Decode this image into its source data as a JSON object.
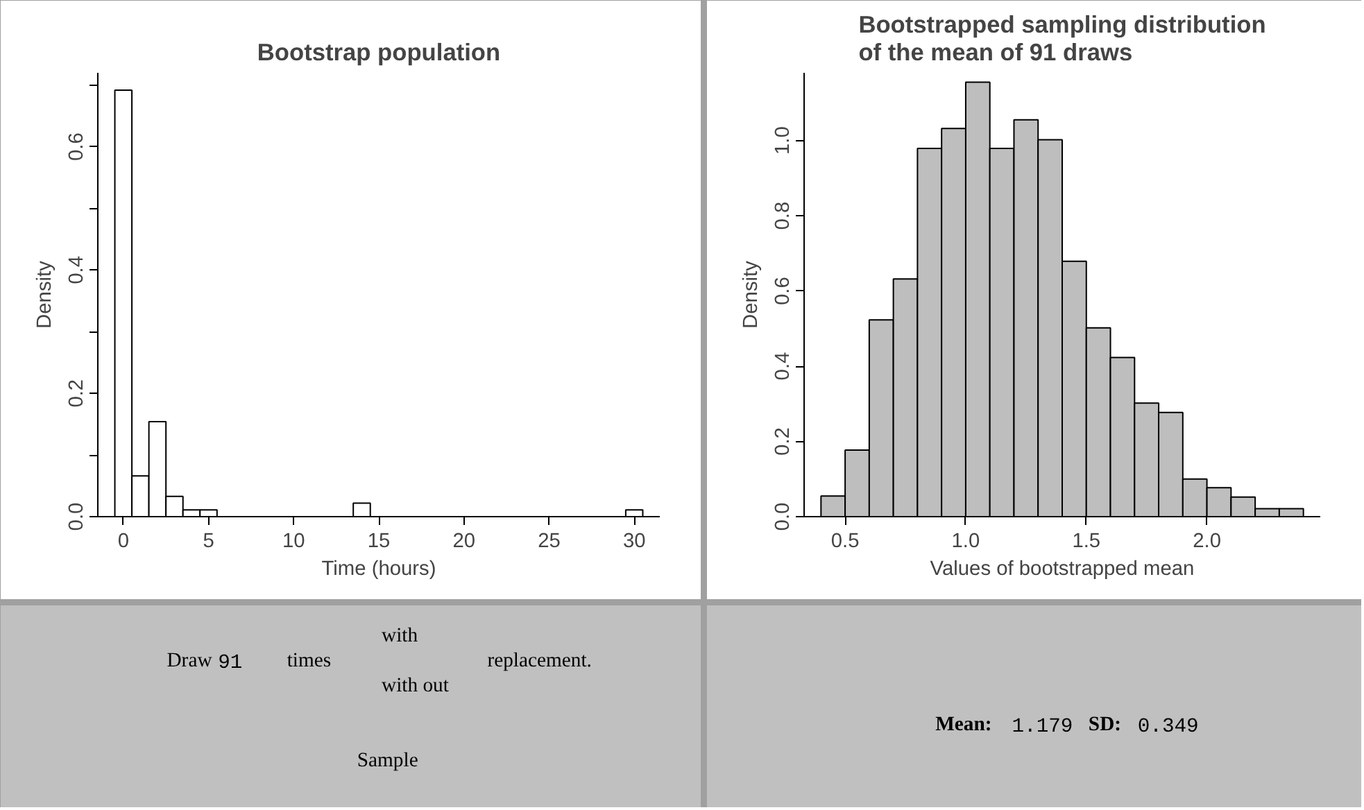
{
  "chart_data": [
    {
      "type": "histogram",
      "title": "Bootstrap population",
      "xlabel": "Time (hours)",
      "ylabel": "Density",
      "color": "#ffffff",
      "bins": [
        -0.5,
        0.5,
        1.5,
        2.5,
        3.5,
        4.5,
        5.5,
        6.5,
        7.5,
        8.5,
        9.5,
        10.5,
        11.5,
        12.5,
        13.5,
        14.5,
        15.5,
        16.5,
        17.5,
        18.5,
        19.5,
        20.5,
        21.5,
        22.5,
        23.5,
        24.5,
        25.5,
        26.5,
        27.5,
        28.5,
        29.5,
        30.5
      ],
      "values": [
        0.692,
        0.066,
        0.154,
        0.033,
        0.011,
        0.011,
        0,
        0,
        0,
        0,
        0,
        0,
        0,
        0,
        0.022,
        0,
        0,
        0,
        0,
        0,
        0,
        0,
        0,
        0,
        0,
        0,
        0,
        0,
        0,
        0,
        0.011
      ],
      "xlim": [
        -1.5,
        31.5
      ],
      "ylim": [
        0,
        0.72
      ],
      "xticks": [
        0,
        5,
        10,
        15,
        20,
        25,
        30
      ],
      "yticks": [
        {
          "value": 0,
          "label": "0.0"
        },
        {
          "value": 0.1,
          "label": null
        },
        {
          "value": 0.2,
          "label": "0.2"
        },
        {
          "value": 0.3,
          "label": null
        },
        {
          "value": 0.4,
          "label": "0.4"
        },
        {
          "value": 0.5,
          "label": null
        },
        {
          "value": 0.6,
          "label": "0.6"
        },
        {
          "value": 0.7,
          "label": null
        }
      ],
      "grid": false
    },
    {
      "type": "histogram",
      "title": "Bootstrapped sampling distribution\nof the mean of 91 draws",
      "xlabel": "Values of bootstrapped mean",
      "ylabel": "Density",
      "color": "#bebebe",
      "bins": [
        0.4,
        0.5,
        0.6,
        0.7,
        0.8,
        0.9,
        1.0,
        1.1,
        1.2,
        1.3,
        1.4,
        1.5,
        1.6,
        1.7,
        1.8,
        1.9,
        2.0,
        2.1,
        2.2,
        2.3,
        2.4
      ],
      "values": [
        0.055,
        0.177,
        0.523,
        0.632,
        0.979,
        1.032,
        1.155,
        0.979,
        1.055,
        1.002,
        0.679,
        0.502,
        0.423,
        0.302,
        0.277,
        0.1,
        0.077,
        0.052,
        0.021,
        0.021
      ],
      "xlim": [
        0.33,
        2.47
      ],
      "ylim": [
        0,
        1.18
      ],
      "xticks": [
        {
          "value": 0.5,
          "label": "0.5"
        },
        {
          "value": 1.0,
          "label": "1.0"
        },
        {
          "value": 1.5,
          "label": "1.5"
        },
        {
          "value": 2.0,
          "label": "2.0"
        }
      ],
      "yticks": [
        {
          "value": 0,
          "label": "0.0"
        },
        {
          "value": 0.2,
          "label": "0.2"
        },
        {
          "value": 0.4,
          "label": "0.4"
        },
        {
          "value": 0.6,
          "label": "0.6"
        },
        {
          "value": 0.8,
          "label": "0.8"
        },
        {
          "value": 1.0,
          "label": "1.0"
        }
      ],
      "grid": false
    },
    {
      "type": "other",
      "annotations": [
        "Draw",
        "91",
        "times",
        "with",
        "with out",
        "replacement.",
        "Sample"
      ]
    },
    {
      "type": "other",
      "annotations": [
        "Mean:",
        "1.179",
        "SD:",
        "0.349"
      ]
    }
  ]
}
